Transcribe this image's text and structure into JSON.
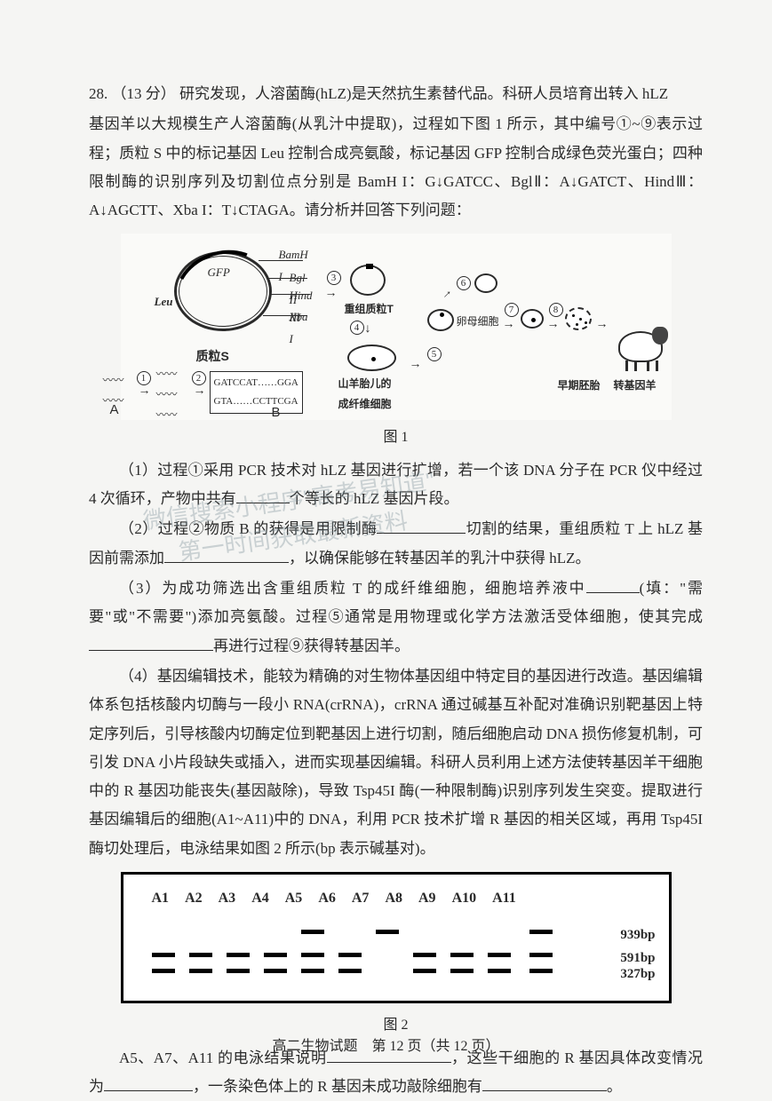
{
  "q_num": "28.",
  "q_points": "（13 分）",
  "intro_line1": "研究发现，人溶菌酶(hLZ)是天然抗生素替代品。科研人员培育出转入 hLZ",
  "intro_line2": "基因羊以大规模生产人溶菌酶(从乳汁中提取)，过程如下图 1 所示，其中编号①~⑨表示过程；质粒 S 中的标记基因 Leu 控制合成亮氨酸，标记基因 GFP 控制合成绿色荧光蛋白；四种限制酶的识别序列及切割位点分别是 BamH I：G↓GATCC、BglⅡ：A↓GATCT、HindⅢ：A↓AGCTT、Xba I：T↓CTAGA。请分析并回答下列问题：",
  "plasmid_name": "质粒S",
  "gene_gfp": "GFP",
  "gene_leu": "Leu",
  "enzyme_bamh": "BamH I",
  "enzyme_bgl": "Bgl II",
  "enzyme_hind": "Hind III",
  "enzyme_xba": "Xba I",
  "label_a": "A",
  "label_b": "B",
  "seq_top": "GATCCAT……GGA",
  "seq_bot": "GTA……CCTTCGA",
  "label_recomb": "重组质粒T",
  "label_oocyte": "卵母细胞",
  "label_fiber": "山羊胎儿的\n成纤维细胞",
  "label_embryo": "早期胚胎",
  "label_sheep": "转基因羊",
  "fig1_caption": "图 1",
  "q1": "（1）过程①采用 PCR 技术对 hLZ 基因进行扩增，若一个该 DNA 分子在 PCR 仪中经过 4 次循环，产物中共有",
  "q1_suffix": "个等长的 hLZ 基因片段。",
  "q2": "（2）过程②物质 B 的获得是用限制酶",
  "q2_mid": "切割的结果，重组质粒 T 上 hLZ 基因前需添加",
  "q2_suffix": "，以确保能够在转基因羊的乳汁中获得 hLZ。",
  "q3": "（3）为成功筛选出含重组质粒 T 的成纤维细胞，细胞培养液中",
  "q3_mid": "(填：\"需要\"或\"不需要\")添加亮氨酸。过程⑤通常是用物理或化学方法激活受体细胞，使其完成",
  "q3_suffix": "再进行过程⑨获得转基因羊。",
  "q4": "（4）基因编辑技术，能较为精确的对生物体基因组中特定目的基因进行改造。基因编辑体系包括核酸内切酶与一段小 RNA(crRNA)，crRNA 通过碱基互补配对准确识别靶基因上特定序列后，引导核酸内切酶定位到靶基因上进行切割，随后细胞启动 DNA 损伤修复机制，可引发 DNA 小片段缺失或插入，进而实现基因编辑。科研人员利用上述方法使转基因羊干细胞中的 R 基因功能丧失(基因敲除)，导致 Tsp45I 酶(一种限制酶)识别序列发生突变。提取进行基因编辑后的细胞(A1~A11)中的 DNA，利用 PCR 技术扩增 R 基因的相关区域，再用 Tsp45I 酶切处理后，电泳结果如图 2 所示(bp 表示碱基对)。",
  "lanes": [
    "A1",
    "A2",
    "A3",
    "A4",
    "A5",
    "A6",
    "A7",
    "A8",
    "A9",
    "A10",
    "A11"
  ],
  "bp_939": "939bp",
  "bp_591": "591bp",
  "bp_327": "327bp",
  "fig2_caption": "图 2",
  "q4_final": "A5、A7、A11 的电泳结果说明",
  "q4_final_mid": "，这些干细胞的 R 基因具体改变情况为",
  "q4_final_mid2": "，一条染色体上的 R 基因未成功敲除细胞有",
  "q4_final_suffix": "。",
  "footer_text": "高二生物试题　第 12 页（共 12 页）",
  "watermark1": "微信搜索小程序\"高考易知道\"",
  "watermark2": "第一时间获取最新资料",
  "fig1": {
    "colors": {
      "line": "#2a2a2a",
      "fill": "#ffffff",
      "bg": "#fafaf8"
    }
  },
  "gel": {
    "band_color": "#000000",
    "border_color": "#000000",
    "lane_positions": [
      0,
      42,
      84,
      126,
      168,
      210,
      252,
      294,
      336,
      378,
      425
    ],
    "bands": {
      "row_939": {
        "y": 8,
        "lanes": [
          4,
          6,
          10
        ]
      },
      "row_591": {
        "y": 34,
        "lanes": [
          0,
          1,
          2,
          3,
          4,
          5,
          7,
          8,
          9,
          10
        ]
      },
      "row_327": {
        "y": 52,
        "lanes": [
          0,
          1,
          2,
          3,
          4,
          5,
          7,
          8,
          9,
          10
        ]
      }
    }
  }
}
